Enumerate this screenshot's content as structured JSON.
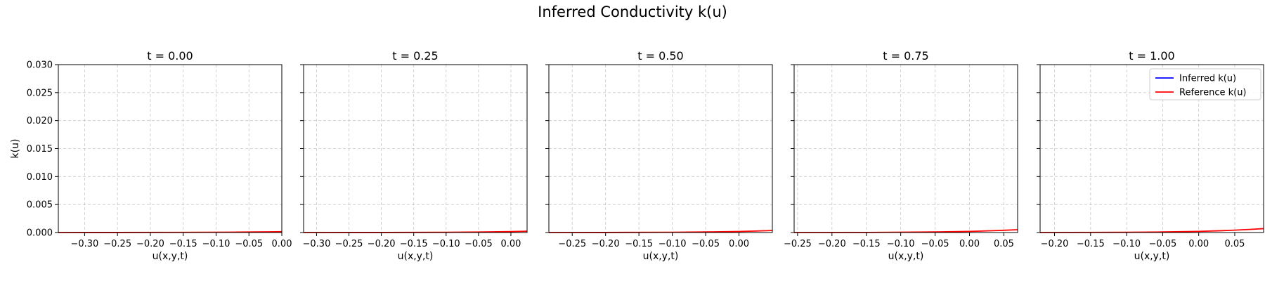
{
  "chart_data": {
    "type": "line",
    "title": "Inferred Conductivity k(u)",
    "ylabel": "k(u)",
    "ylim": [
      0,
      0.03
    ],
    "yticks": [
      0.0,
      0.005,
      0.01,
      0.015,
      0.02,
      0.025,
      0.03
    ],
    "ytick_labels": [
      "0.000",
      "0.005",
      "0.010",
      "0.015",
      "0.020",
      "0.025",
      "0.030"
    ],
    "grid": true,
    "legend": {
      "placement": "top-right",
      "panel": 4,
      "entries": [
        {
          "label": "Inferred k(u)",
          "color": "#0000ff"
        },
        {
          "label": "Reference k(u)",
          "color": "#ff0000"
        }
      ]
    },
    "panels": [
      {
        "title": "t = 0.00",
        "xlabel": "u(x,y,t)",
        "xlim": [
          -0.34,
          0.0
        ],
        "xticks": [
          -0.3,
          -0.25,
          -0.2,
          -0.15,
          -0.1,
          -0.05,
          0.0
        ],
        "xtick_labels": [
          "−0.30",
          "−0.25",
          "−0.20",
          "−0.15",
          "−0.10",
          "−0.05",
          "0.00"
        ],
        "series": [
          {
            "label": "Reference k(u)",
            "color": "#ff0000",
            "x": [
              -0.34,
              -0.25,
              -0.15,
              -0.08,
              -0.04,
              0.0
            ],
            "y": [
              0.0,
              1e-05,
              3e-05,
              6e-05,
              0.0001,
              0.00015
            ]
          }
        ]
      },
      {
        "title": "t = 0.25",
        "xlabel": "u(x,y,t)",
        "xlim": [
          -0.32,
          0.025
        ],
        "xticks": [
          -0.3,
          -0.25,
          -0.2,
          -0.15,
          -0.1,
          -0.05,
          0.0
        ],
        "xtick_labels": [
          "−0.30",
          "−0.25",
          "−0.20",
          "−0.15",
          "−0.10",
          "−0.05",
          "0.00"
        ],
        "series": [
          {
            "label": "Reference k(u)",
            "color": "#ff0000",
            "x": [
              -0.32,
              -0.2,
              -0.1,
              -0.05,
              0.0,
              0.025
            ],
            "y": [
              0.0,
              1e-05,
              4e-05,
              9e-05,
              0.00017,
              0.00024
            ]
          }
        ]
      },
      {
        "title": "t = 0.50",
        "xlabel": "u(x,y,t)",
        "xlim": [
          -0.285,
          0.05
        ],
        "xticks": [
          -0.25,
          -0.2,
          -0.15,
          -0.1,
          -0.05,
          0.0
        ],
        "xtick_labels": [
          "−0.25",
          "−0.20",
          "−0.15",
          "−0.10",
          "−0.05",
          "0.00"
        ],
        "series": [
          {
            "label": "Reference k(u)",
            "color": "#ff0000",
            "x": [
              -0.285,
              -0.2,
              -0.1,
              -0.05,
              0.0,
              0.025,
              0.05
            ],
            "y": [
              0.0,
              1e-05,
              5e-05,
              0.0001,
              0.00019,
              0.00027,
              0.00036
            ]
          }
        ]
      },
      {
        "title": "t = 0.75",
        "xlabel": "u(x,y,t)",
        "xlim": [
          -0.255,
          0.07
        ],
        "xticks": [
          -0.25,
          -0.2,
          -0.15,
          -0.1,
          -0.05,
          0.0,
          0.05
        ],
        "xtick_labels": [
          "−0.25",
          "−0.20",
          "−0.15",
          "−0.10",
          "−0.05",
          "0.00",
          "0.05"
        ],
        "series": [
          {
            "label": "Reference k(u)",
            "color": "#ff0000",
            "x": [
              -0.255,
              -0.15,
              -0.05,
              0.0,
              0.03,
              0.05,
              0.07
            ],
            "y": [
              0.0,
              2e-05,
              0.0001,
              0.0002,
              0.00031,
              0.0004,
              0.0005
            ]
          }
        ]
      },
      {
        "title": "t = 1.00",
        "xlabel": "u(x,y,t)",
        "xlim": [
          -0.22,
          0.09
        ],
        "xticks": [
          -0.2,
          -0.15,
          -0.1,
          -0.05,
          0.0,
          0.05
        ],
        "xtick_labels": [
          "−0.20",
          "−0.15",
          "−0.10",
          "−0.05",
          "0.00",
          "0.05"
        ],
        "series": [
          {
            "label": "Reference k(u)",
            "color": "#ff0000",
            "x": [
              -0.22,
              -0.1,
              -0.05,
              0.0,
              0.03,
              0.05,
              0.07,
              0.09
            ],
            "y": [
              0.0,
              4e-05,
              0.0001,
              0.0002,
              0.00032,
              0.00042,
              0.00055,
              0.0007
            ]
          }
        ]
      }
    ]
  }
}
